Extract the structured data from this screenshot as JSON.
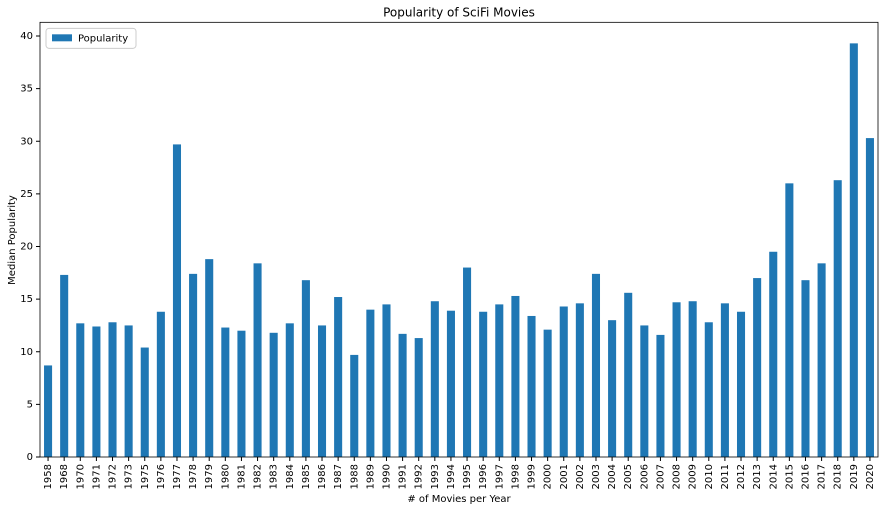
{
  "chart_data": {
    "type": "bar",
    "title": "Popularity of SciFi Movies",
    "x_label": "# of Movies per Year",
    "y_label": "Median Popularity",
    "categories": [
      "1958",
      "1968",
      "1970",
      "1971",
      "1972",
      "1973",
      "1975",
      "1976",
      "1977",
      "1978",
      "1979",
      "1980",
      "1981",
      "1982",
      "1983",
      "1984",
      "1985",
      "1986",
      "1987",
      "1988",
      "1989",
      "1990",
      "1991",
      "1992",
      "1993",
      "1994",
      "1995",
      "1996",
      "1997",
      "1998",
      "1999",
      "2000",
      "2001",
      "2002",
      "2003",
      "2004",
      "2005",
      "2006",
      "2007",
      "2008",
      "2009",
      "2010",
      "2011",
      "2012",
      "2013",
      "2014",
      "2015",
      "2016",
      "2017",
      "2018",
      "2019",
      "2020"
    ],
    "series": [
      {
        "name": "Popularity",
        "color": "#1f77b4",
        "values": [
          8.7,
          17.3,
          12.7,
          12.4,
          12.8,
          12.5,
          10.4,
          13.8,
          29.7,
          17.4,
          18.8,
          12.3,
          12.0,
          18.4,
          11.8,
          12.7,
          16.8,
          12.5,
          15.2,
          9.7,
          14.0,
          14.5,
          11.7,
          11.3,
          14.8,
          13.9,
          18.0,
          13.8,
          14.5,
          15.3,
          13.4,
          12.1,
          14.3,
          14.6,
          17.4,
          13.0,
          15.6,
          12.5,
          11.6,
          14.7,
          14.8,
          12.8,
          14.6,
          13.8,
          17.0,
          19.5,
          26.0,
          16.8,
          18.4,
          26.3,
          39.3,
          30.3
        ]
      }
    ],
    "ylim": [
      0,
      41.3
    ],
    "yticks": [
      0,
      5,
      10,
      15,
      20,
      25,
      30,
      35,
      40
    ],
    "legend": "upper left"
  }
}
